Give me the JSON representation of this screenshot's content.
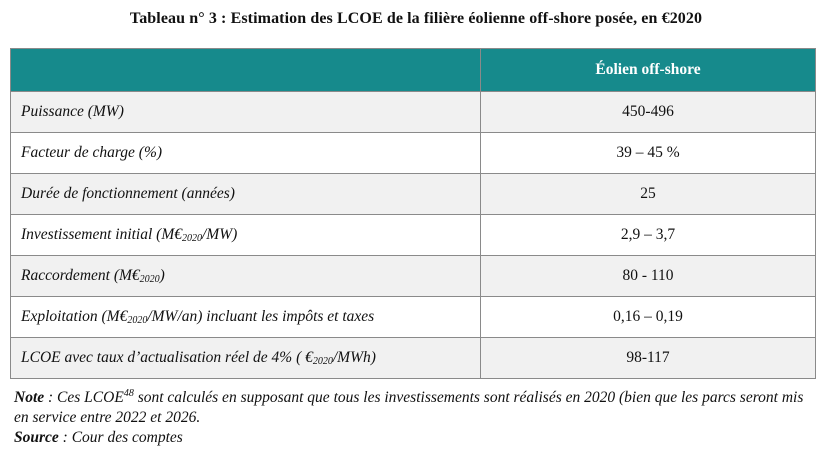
{
  "title": "Tableau n° 3 :  Estimation des LCOE de la filière éolienne off-shore posée, en €2020",
  "table": {
    "columns": [
      "",
      "Éolien off-shore"
    ],
    "rows": [
      {
        "label": "Puissance (MW)",
        "value": "450-496"
      },
      {
        "label": "Facteur de charge (%)",
        "value": "39 – 45 %"
      },
      {
        "label": "Durée de fonctionnement (années)",
        "value": "25"
      },
      {
        "label_pre": "Investissement initial (M€",
        "label_sub": "2020",
        "label_post": "/MW)",
        "value": "2,9 – 3,7"
      },
      {
        "label_pre": "Raccordement (M€",
        "label_sub": "2020",
        "label_post": ")",
        "value": "80 - 110"
      },
      {
        "label_pre": "Exploitation (M€",
        "label_sub": "2020",
        "label_post": "/MW/an) incluant les impôts et taxes",
        "value": "0,16 – 0,19"
      },
      {
        "label_pre": "LCOE avec taux d’actualisation réel de 4% ( €",
        "label_sub": "2020",
        "label_post": "/MWh)",
        "value": "98-117"
      }
    ]
  },
  "notes": {
    "note_label": "Note",
    "note_pre": " : Ces LCOE",
    "note_sup": "48",
    "note_post": " sont calculés en supposant que tous les investissements sont réalisés en 2020 (bien que les parcs seront mis en service entre 2022 et 2026.",
    "source_label": "Source",
    "source_text": " : Cour des comptes"
  },
  "colors": {
    "header_bg": "#168a8c",
    "header_text": "#ffffff",
    "stripe": "#f1f1f1"
  }
}
